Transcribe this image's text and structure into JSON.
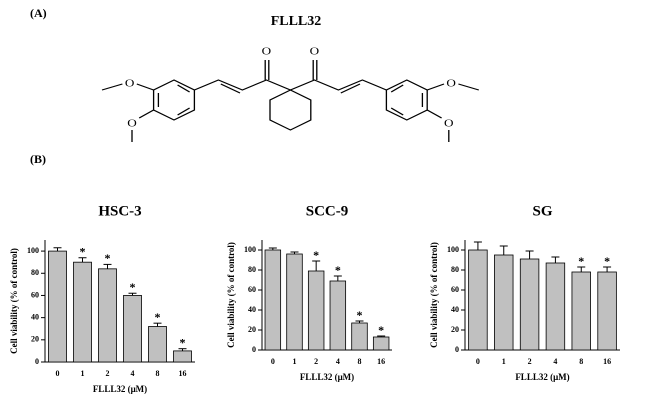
{
  "panel_a": "(A)",
  "compound": "FLLL32",
  "panel_b": "(B)",
  "structure_atoms": [
    "O",
    "O",
    "O",
    "O",
    "O",
    "O"
  ],
  "chart_data": [
    {
      "type": "bar",
      "title": "HSC-3",
      "xlabel": "FLLL32 (μM)",
      "ylabel": "Cell viability (% of control)",
      "categories": [
        "0",
        "1",
        "2",
        "4",
        "8",
        "16"
      ],
      "values": [
        100,
        90,
        84,
        60,
        32,
        10
      ],
      "errors": [
        3,
        4,
        4,
        2,
        3,
        2
      ],
      "significance_labels": [
        null,
        "*",
        "*",
        "*",
        "*",
        "*"
      ],
      "color": "#c0c0c0",
      "ylim": [
        0,
        110
      ],
      "yticks": [
        0,
        20,
        40,
        60,
        80,
        100
      ]
    },
    {
      "type": "bar",
      "title": "SCC-9",
      "xlabel": "FLLL32 (μM)",
      "ylabel": "Cell viability (% of control)",
      "categories": [
        "0",
        "1",
        "2",
        "4",
        "8",
        "16"
      ],
      "values": [
        100,
        96,
        79,
        69,
        27,
        13
      ],
      "errors": [
        2,
        2,
        10,
        5,
        2,
        1
      ],
      "significance_labels": [
        null,
        null,
        "*",
        "*",
        "*",
        "*"
      ],
      "color": "#c0c0c0",
      "ylim": [
        0,
        110
      ],
      "yticks": [
        0,
        20,
        40,
        60,
        80,
        100
      ]
    },
    {
      "type": "bar",
      "title": "SG",
      "xlabel": "FLLL32 (μM)",
      "ylabel": "Cell viability (% of control)",
      "categories": [
        "0",
        "1",
        "2",
        "4",
        "8",
        "16"
      ],
      "values": [
        100,
        95,
        91,
        87,
        78,
        78
      ],
      "errors": [
        8,
        9,
        8,
        6,
        5,
        5
      ],
      "significance_labels": [
        null,
        null,
        null,
        null,
        "*",
        "*"
      ],
      "color": "#c0c0c0",
      "ylim": [
        0,
        110
      ],
      "yticks": [
        0,
        20,
        40,
        60,
        80,
        100
      ]
    }
  ]
}
